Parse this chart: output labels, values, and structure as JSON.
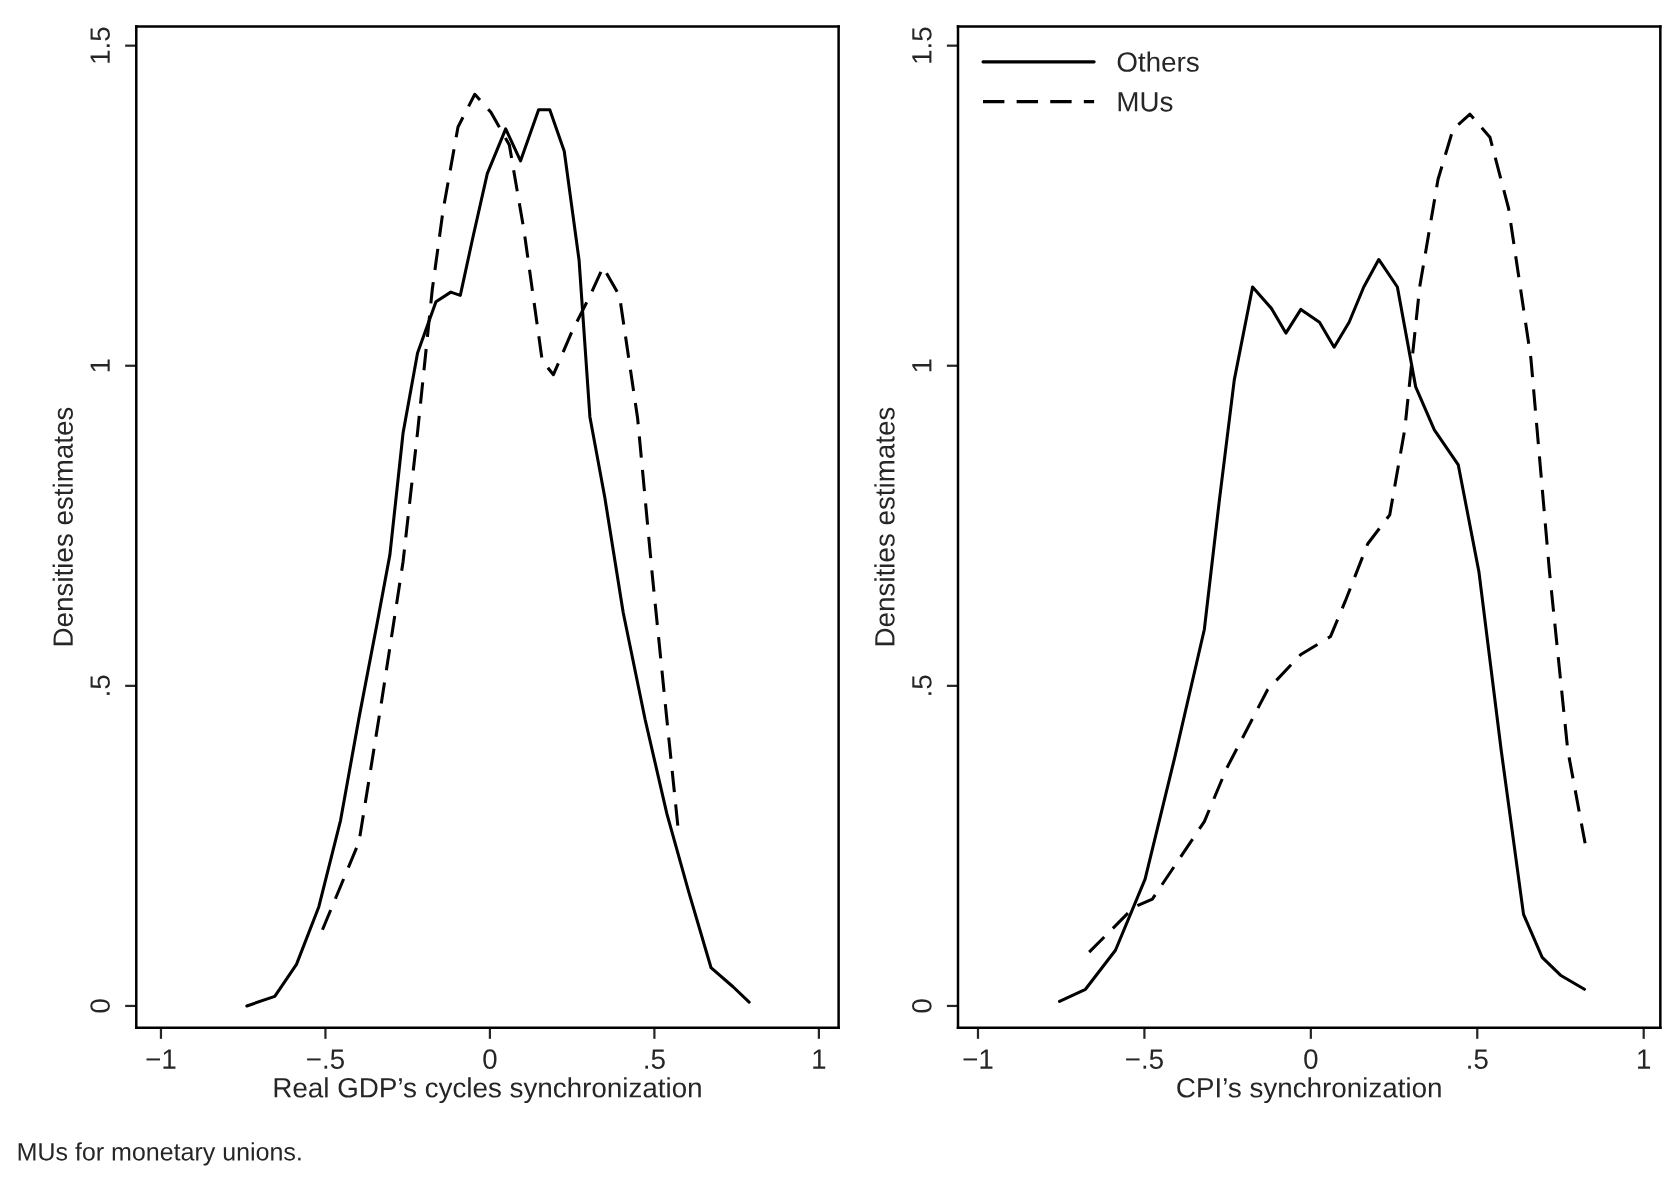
{
  "chart_data": [
    {
      "type": "line",
      "xlabel": "Real GDP’s cycles synchronization",
      "ylabel": "Densities estimates",
      "xlim": [
        -1.075,
        1.06
      ],
      "ylim": [
        -0.034,
        1.53
      ],
      "xticks": [
        {
          "value": -1,
          "label": "−1"
        },
        {
          "value": -0.5,
          "label": "−.5"
        },
        0,
        {
          "value": 0.5,
          "label": ".5"
        },
        1
      ],
      "yticks": [
        0,
        {
          "value": 0.5,
          "label": ".5"
        },
        1,
        1.5
      ],
      "grid": false,
      "legend": false,
      "annotations": [
        "MUs for monetary unions."
      ],
      "series": [
        {
          "color": "#000000",
          "line_style": "solid",
          "x": [
            -0.739,
            -0.654,
            -0.588,
            -0.52,
            -0.454,
            -0.398,
            -0.342,
            -0.304,
            -0.264,
            -0.22,
            -0.164,
            -0.119,
            -0.09,
            -0.052,
            -0.008,
            0.048,
            0.093,
            0.148,
            0.182,
            0.226,
            0.271,
            0.304,
            0.349,
            0.405,
            0.472,
            0.538,
            0.605,
            0.672,
            0.739,
            0.788
          ],
          "values": [
            0.0,
            0.015,
            0.065,
            0.155,
            0.29,
            0.45,
            0.6,
            0.705,
            0.895,
            1.02,
            1.1,
            1.115,
            1.11,
            1.2,
            1.3,
            1.37,
            1.32,
            1.4,
            1.4,
            1.335,
            1.165,
            0.92,
            0.795,
            0.615,
            0.447,
            0.3,
            0.177,
            0.06,
            0.03,
            0.006
          ]
        },
        {
          "color": "#000000",
          "line_style": "dashed",
          "x": [
            -0.509,
            -0.398,
            -0.331,
            -0.264,
            -0.22,
            -0.175,
            -0.142,
            -0.097,
            -0.046,
            0.003,
            0.059,
            0.104,
            0.159,
            0.193,
            0.249,
            0.304,
            0.344,
            0.394,
            0.449,
            0.494,
            0.538,
            0.572
          ],
          "values": [
            0.119,
            0.256,
            0.47,
            0.694,
            0.896,
            1.12,
            1.244,
            1.373,
            1.424,
            1.396,
            1.345,
            1.21,
            1.008,
            0.986,
            1.053,
            1.109,
            1.154,
            1.109,
            0.918,
            0.671,
            0.447,
            0.278
          ]
        }
      ]
    },
    {
      "type": "line",
      "xlabel": "CPI’s synchronization",
      "ylabel": "Densities estimates",
      "xlim": [
        -1.06,
        1.05
      ],
      "ylim": [
        -0.034,
        1.53
      ],
      "xticks": [
        {
          "value": -1,
          "label": "−1"
        },
        {
          "value": -0.5,
          "label": "−.5"
        },
        0,
        {
          "value": 0.5,
          "label": ".5"
        },
        1
      ],
      "yticks": [
        0,
        {
          "value": 0.5,
          "label": ".5"
        },
        1,
        1.5
      ],
      "grid": false,
      "legend": "top left",
      "series": [
        {
          "name": "Others",
          "color": "#000000",
          "line_style": "solid",
          "x": [
            -0.755,
            -0.677,
            -0.587,
            -0.498,
            -0.409,
            -0.32,
            -0.275,
            -0.23,
            -0.175,
            -0.119,
            -0.075,
            -0.03,
            0.026,
            0.07,
            0.115,
            0.159,
            0.204,
            0.26,
            0.315,
            0.371,
            0.443,
            0.505,
            0.572,
            0.639,
            0.695,
            0.75,
            0.822
          ],
          "values": [
            0.007,
            0.026,
            0.087,
            0.198,
            0.388,
            0.588,
            0.789,
            0.978,
            1.123,
            1.09,
            1.051,
            1.088,
            1.068,
            1.029,
            1.068,
            1.123,
            1.166,
            1.123,
            0.967,
            0.9,
            0.845,
            0.678,
            0.399,
            0.143,
            0.076,
            0.048,
            0.026
          ]
        },
        {
          "name": "MUs",
          "color": "#000000",
          "line_style": "dashed",
          "x": [
            -0.666,
            -0.532,
            -0.476,
            -0.32,
            -0.253,
            -0.13,
            -0.03,
            0.059,
            0.104,
            0.171,
            0.237,
            0.282,
            0.327,
            0.382,
            0.427,
            0.478,
            0.538,
            0.594,
            0.661,
            0.717,
            0.772,
            0.824
          ],
          "values": [
            0.084,
            0.154,
            0.167,
            0.288,
            0.371,
            0.494,
            0.549,
            0.577,
            0.633,
            0.722,
            0.767,
            0.9,
            1.123,
            1.291,
            1.369,
            1.393,
            1.357,
            1.246,
            1.012,
            0.678,
            0.399,
            0.254
          ]
        }
      ]
    }
  ]
}
